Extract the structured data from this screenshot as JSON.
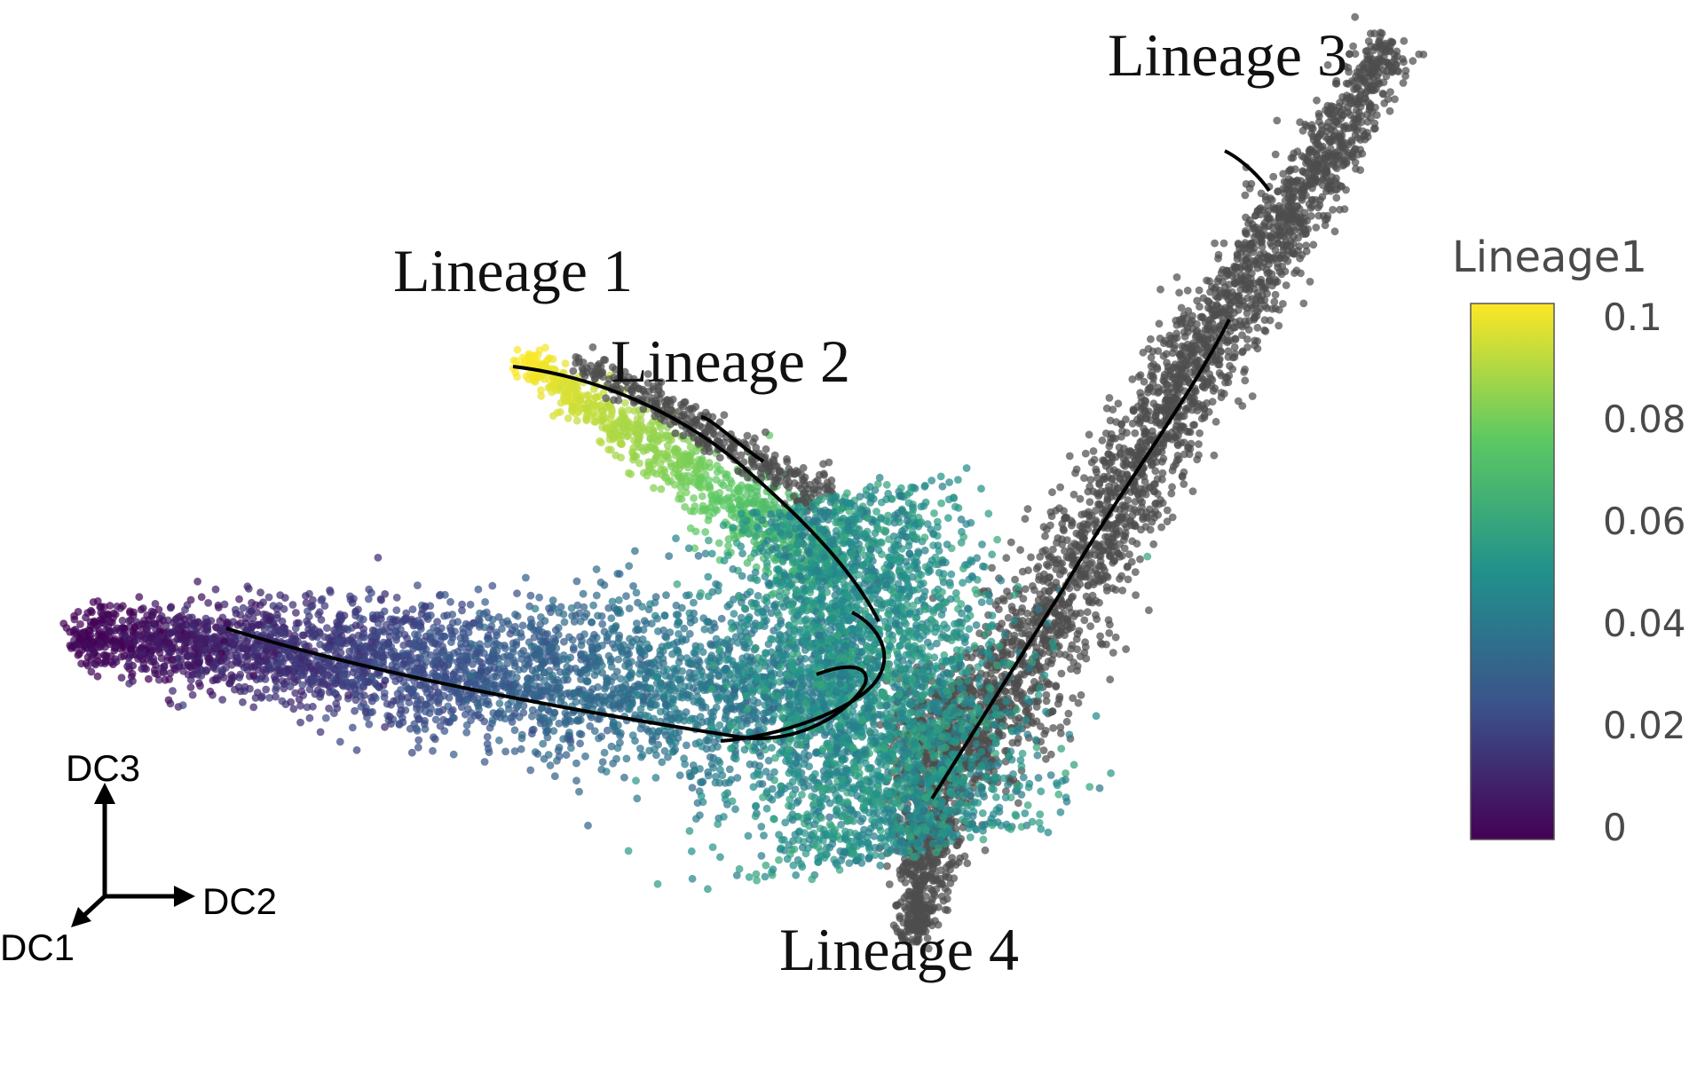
{
  "chart_data": {
    "type": "scatter",
    "title": "",
    "dimensions": [
      "DC1",
      "DC2",
      "DC3"
    ],
    "lineage_labels": [
      "Lineage 1",
      "Lineage 2",
      "Lineage 3",
      "Lineage 4"
    ],
    "color_variable": "Lineage1",
    "colorscale": "viridis",
    "color_range": [
      0,
      0.1
    ],
    "colorbar_ticks": [
      "0.1",
      "0.08",
      "0.06",
      "0.04",
      "0.02",
      "0"
    ],
    "colors": {
      "viridis_stops": [
        "#440154",
        "#3b528b",
        "#21918c",
        "#5ec962",
        "#fde725"
      ],
      "not_in_lineage": "#4d4d4d",
      "curve": "#000000"
    },
    "regions": [
      {
        "branch": "Lineage 1 arm",
        "lineage1_value_range": [
          0.06,
          0.1
        ]
      },
      {
        "branch": "Lineage 2 arm",
        "lineage1_value_range": null
      },
      {
        "branch": "Lineage 3 arm",
        "lineage1_value_range": null
      },
      {
        "branch": "Lineage 4 arm",
        "lineage1_value_range": null
      },
      {
        "branch": "left arm",
        "lineage1_value_range": [
          0.0,
          0.04
        ]
      },
      {
        "branch": "center",
        "lineage1_value_range": [
          0.04,
          0.06
        ]
      }
    ]
  }
}
